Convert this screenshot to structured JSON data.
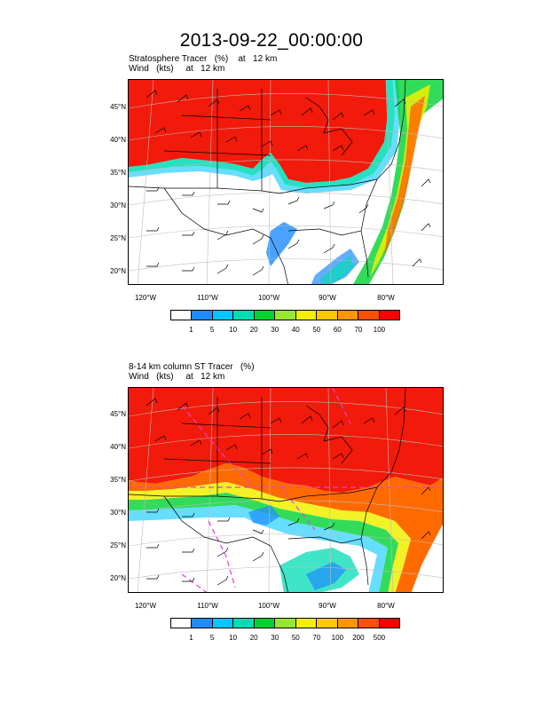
{
  "title": "2013-09-22_00:00:00",
  "panels": [
    {
      "subtitle_line1": "Stratosphere Tracer   (%)    at   12 km",
      "subtitle_line2": "Wind   (kts)     at   12 km",
      "colorbar": {
        "labels": [
          "1",
          "5",
          "10",
          "20",
          "30",
          "40",
          "50",
          "60",
          "70",
          "100"
        ],
        "colors": [
          "#ffffff",
          "#1e8cff",
          "#00c8ff",
          "#00dcb4",
          "#00d232",
          "#96e632",
          "#f0f000",
          "#ffc800",
          "#ff9600",
          "#ff5000",
          "#ff0000"
        ]
      }
    },
    {
      "subtitle_line1": "8-14 km column ST Tracer   (%)",
      "subtitle_line2": "Wind   (kts)     at   12 km",
      "colorbar": {
        "labels": [
          "1",
          "5",
          "10",
          "20",
          "30",
          "50",
          "70",
          "100",
          "200",
          "500"
        ],
        "colors": [
          "#ffffff",
          "#1e8cff",
          "#00c8ff",
          "#00dcb4",
          "#00d232",
          "#96e632",
          "#f0f000",
          "#ffc800",
          "#ff9600",
          "#ff5000",
          "#ff0000"
        ]
      }
    }
  ],
  "lat_labels": [
    "45°N",
    "40°N",
    "35°N",
    "30°N",
    "25°N",
    "20°N"
  ],
  "lon_labels": [
    "120°W",
    "110°W",
    "100°W",
    "90°W",
    "80°W"
  ],
  "map_colors": {
    "red": "#f21a0a",
    "orange": "#ff6a00",
    "yellow": "#f0f000",
    "green": "#00d232",
    "teal": "#00dcb4",
    "cyan": "#00c8ff",
    "blue": "#1e8cff",
    "magenta": "#e040e0"
  }
}
